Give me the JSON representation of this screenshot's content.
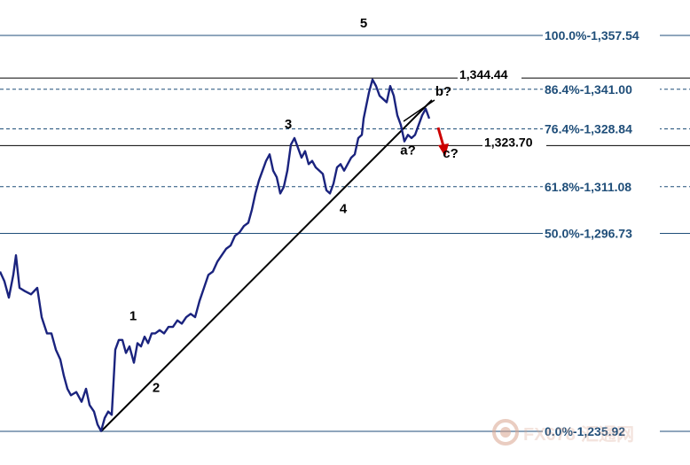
{
  "chart_data": {
    "type": "line",
    "title": "",
    "xlabel": "",
    "ylabel": "",
    "ylim": [
      1229,
      1365
    ],
    "fib_levels": [
      {
        "label": "100.0%-1,357.54",
        "value": 1357.54,
        "style": "solid"
      },
      {
        "label": "86.4%-1,341.00",
        "value": 1341.0,
        "style": "dashed"
      },
      {
        "label": "76.4%-1,328.84",
        "value": 1328.84,
        "style": "dashed"
      },
      {
        "label": "61.8%-1,311.08",
        "value": 1311.08,
        "style": "dashed"
      },
      {
        "label": "50.0%-1,296.73",
        "value": 1296.73,
        "style": "solid"
      },
      {
        "label": "0.0%-1,235.92",
        "value": 1235.92,
        "style": "solid"
      }
    ],
    "key_levels": [
      {
        "label": "1,344.44",
        "value": 1344.44
      },
      {
        "label": "1,323.70",
        "value": 1323.7
      }
    ],
    "wave_labels": [
      {
        "text": "1",
        "x": 150,
        "y": 1270
      },
      {
        "text": "2",
        "x": 176,
        "y": 1248
      },
      {
        "text": "3",
        "x": 325,
        "y": 1329
      },
      {
        "text": "4",
        "x": 387,
        "y": 1303
      },
      {
        "text": "5",
        "x": 410,
        "y": 1360
      },
      {
        "text": "a?",
        "x": 460,
        "y": 1321
      },
      {
        "text": "b?",
        "x": 500,
        "y": 1339
      },
      {
        "text": "c?",
        "x": 508,
        "y": 1320
      }
    ],
    "x_range": [
      0,
      778
    ],
    "price_series": {
      "name": "",
      "color": "#1a237e",
      "points": [
        [
          0,
          1285
        ],
        [
          5,
          1282
        ],
        [
          10,
          1277
        ],
        [
          15,
          1284
        ],
        [
          18,
          1290
        ],
        [
          22,
          1280
        ],
        [
          28,
          1279
        ],
        [
          35,
          1278
        ],
        [
          42,
          1280
        ],
        [
          47,
          1271
        ],
        [
          53,
          1266
        ],
        [
          58,
          1266
        ],
        [
          63,
          1261
        ],
        [
          68,
          1258
        ],
        [
          72,
          1253
        ],
        [
          76,
          1249
        ],
        [
          80,
          1247
        ],
        [
          86,
          1248
        ],
        [
          92,
          1245
        ],
        [
          97,
          1249
        ],
        [
          101,
          1244
        ],
        [
          106,
          1242
        ],
        [
          110,
          1238
        ],
        [
          114,
          1236
        ],
        [
          118,
          1240
        ],
        [
          122,
          1242
        ],
        [
          126,
          1241
        ],
        [
          130,
          1261
        ],
        [
          134,
          1264
        ],
        [
          138,
          1264
        ],
        [
          142,
          1260
        ],
        [
          146,
          1262
        ],
        [
          151,
          1257
        ],
        [
          155,
          1263
        ],
        [
          159,
          1262
        ],
        [
          163,
          1265
        ],
        [
          167,
          1263
        ],
        [
          171,
          1266
        ],
        [
          175,
          1266
        ],
        [
          180,
          1267
        ],
        [
          185,
          1266
        ],
        [
          190,
          1268
        ],
        [
          195,
          1268
        ],
        [
          200,
          1270
        ],
        [
          205,
          1269
        ],
        [
          210,
          1271
        ],
        [
          215,
          1272
        ],
        [
          220,
          1271
        ],
        [
          225,
          1276
        ],
        [
          230,
          1280
        ],
        [
          235,
          1284
        ],
        [
          240,
          1285
        ],
        [
          245,
          1288
        ],
        [
          250,
          1290
        ],
        [
          255,
          1292
        ],
        [
          260,
          1293
        ],
        [
          265,
          1296
        ],
        [
          270,
          1297
        ],
        [
          275,
          1299
        ],
        [
          280,
          1300
        ],
        [
          284,
          1304
        ],
        [
          288,
          1309
        ],
        [
          292,
          1313
        ],
        [
          296,
          1316
        ],
        [
          300,
          1319
        ],
        [
          304,
          1321
        ],
        [
          308,
          1316
        ],
        [
          312,
          1314
        ],
        [
          316,
          1309
        ],
        [
          320,
          1311
        ],
        [
          324,
          1316
        ],
        [
          328,
          1324
        ],
        [
          332,
          1326
        ],
        [
          336,
          1323
        ],
        [
          340,
          1320
        ],
        [
          344,
          1322
        ],
        [
          348,
          1318
        ],
        [
          352,
          1319
        ],
        [
          356,
          1317
        ],
        [
          360,
          1316
        ],
        [
          364,
          1315
        ],
        [
          368,
          1310
        ],
        [
          372,
          1309
        ],
        [
          376,
          1312
        ],
        [
          380,
          1317
        ],
        [
          384,
          1318
        ],
        [
          388,
          1316
        ],
        [
          392,
          1318
        ],
        [
          396,
          1320
        ],
        [
          400,
          1321
        ],
        [
          404,
          1326
        ],
        [
          408,
          1327
        ],
        [
          410,
          1332
        ],
        [
          413,
          1336
        ],
        [
          416,
          1340
        ],
        [
          420,
          1344
        ],
        [
          424,
          1342
        ],
        [
          428,
          1339
        ],
        [
          432,
          1338
        ],
        [
          436,
          1337
        ],
        [
          440,
          1342
        ],
        [
          444,
          1339
        ],
        [
          448,
          1333
        ],
        [
          452,
          1330
        ],
        [
          456,
          1325
        ],
        [
          460,
          1327
        ],
        [
          464,
          1326
        ],
        [
          468,
          1327
        ],
        [
          472,
          1330
        ],
        [
          476,
          1333
        ],
        [
          480,
          1335
        ],
        [
          484,
          1332
        ]
      ]
    }
  },
  "watermark": {
    "text": "FX678",
    "cjk": "汇通网"
  }
}
